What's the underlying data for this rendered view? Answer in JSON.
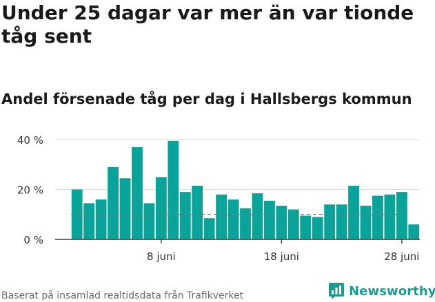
{
  "title": "Under 25 dagar var mer än var tionde tåg sent",
  "subtitle": "Andel försenade tåg per dag i Hallsbergs kommun",
  "source": "Baserat på insamlad realtidsdata från Trafikverket",
  "brand": {
    "name": "Newsworthy",
    "icon": "newsworthy-logo-icon",
    "color": "#1b9a8f"
  },
  "chart_data": {
    "type": "bar",
    "categories": [
      "1 juni",
      "2 juni",
      "3 juni",
      "4 juni",
      "5 juni",
      "6 juni",
      "7 juni",
      "8 juni",
      "9 juni",
      "10 juni",
      "11 juni",
      "12 juni",
      "13 juni",
      "14 juni",
      "15 juni",
      "16 juni",
      "17 juni",
      "18 juni",
      "19 juni",
      "20 juni",
      "21 juni",
      "22 juni",
      "23 juni",
      "24 juni",
      "25 juni",
      "26 juni",
      "27 juni",
      "28 juni",
      "29 juni"
    ],
    "values": [
      20,
      14.5,
      16,
      29,
      24.5,
      37,
      14.5,
      25,
      39.5,
      19,
      21.5,
      8.5,
      18,
      16,
      12.5,
      18.5,
      15.5,
      13.5,
      12,
      9.5,
      9,
      14,
      14,
      21.5,
      13.5,
      17.5,
      18,
      19,
      6
    ],
    "reference_line": 10,
    "ylim": [
      0,
      40
    ],
    "yticks": [
      0,
      20,
      40
    ],
    "ytick_labels": [
      "0 %",
      "20 %",
      "40 %"
    ],
    "xtick_labels": [
      "8 juni",
      "18 juni",
      "28 juni"
    ],
    "xtick_categories": [
      "8 juni",
      "18 juni",
      "28 juni"
    ],
    "bar_color": "#0aa39a",
    "reference_line_color": "#7a7a7a",
    "grid": true,
    "xlabel": "",
    "ylabel": ""
  }
}
